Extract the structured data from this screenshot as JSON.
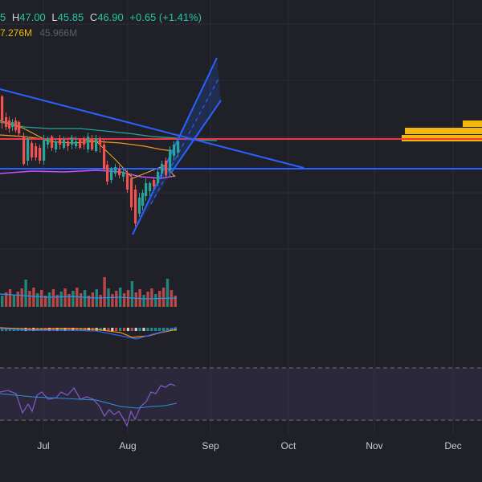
{
  "header": {
    "open_tail": "5",
    "high_key": "H",
    "high": "47.00",
    "low_key": "L",
    "low": "45.85",
    "close_key": "C",
    "close": "46.90",
    "change": "+0.65 (+1.41%)",
    "volume": "7.276M",
    "volume_ma": "45.966M"
  },
  "x_axis": {
    "months": [
      "Jul",
      "Aug",
      "Sep",
      "Oct",
      "Nov",
      "Dec"
    ]
  },
  "colors": {
    "background": "#202128",
    "up": "#26a69a",
    "down": "#ef5350",
    "trendline": "#2962ff",
    "resistance": "#f23645",
    "volume_profile": "#f2b70d",
    "rsi": "#7e57c2"
  }
}
